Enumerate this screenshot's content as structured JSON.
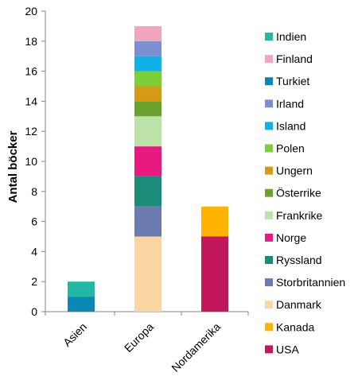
{
  "chart_data": {
    "type": "bar",
    "stacked": true,
    "title": "",
    "xlabel": "",
    "ylabel": "Antal böcker",
    "ylim": [
      0,
      20
    ],
    "yticks": [
      0,
      2,
      4,
      6,
      8,
      10,
      12,
      14,
      16,
      18,
      20
    ],
    "categories": [
      "Asien",
      "Europa",
      "Nordamerika"
    ],
    "grid": false,
    "legend_position": "right",
    "series": [
      {
        "name": "USA",
        "color": "#C2185B",
        "values": [
          0,
          0,
          5
        ]
      },
      {
        "name": "Kanada",
        "color": "#FFB300",
        "values": [
          0,
          0,
          2
        ]
      },
      {
        "name": "Danmark",
        "color": "#FCD5A5",
        "values": [
          0,
          5,
          0
        ]
      },
      {
        "name": "Storbritannien",
        "color": "#6C7BAF",
        "values": [
          0,
          2,
          0
        ]
      },
      {
        "name": "Ryssland",
        "color": "#1B8C7A",
        "values": [
          0,
          2,
          0
        ]
      },
      {
        "name": "Norge",
        "color": "#E8197F",
        "values": [
          0,
          2,
          0
        ]
      },
      {
        "name": "Frankrike",
        "color": "#BCE2A8",
        "values": [
          0,
          2,
          0
        ]
      },
      {
        "name": "Österrike",
        "color": "#6AA42F",
        "values": [
          0,
          1,
          0
        ]
      },
      {
        "name": "Ungern",
        "color": "#D79A14",
        "values": [
          0,
          1,
          0
        ]
      },
      {
        "name": "Polen",
        "color": "#7DCF3A",
        "values": [
          0,
          1,
          0
        ]
      },
      {
        "name": "Island",
        "color": "#0FB2E6",
        "values": [
          0,
          1,
          0
        ]
      },
      {
        "name": "Irland",
        "color": "#7A90D0",
        "values": [
          0,
          1,
          0
        ]
      },
      {
        "name": "Turkiet",
        "color": "#0A88B3",
        "values": [
          1,
          0,
          0
        ]
      },
      {
        "name": "Finland",
        "color": "#F2A3BE",
        "values": [
          0,
          1,
          0
        ]
      },
      {
        "name": "Indien",
        "color": "#23B8A4",
        "values": [
          1,
          0,
          0
        ]
      }
    ]
  }
}
